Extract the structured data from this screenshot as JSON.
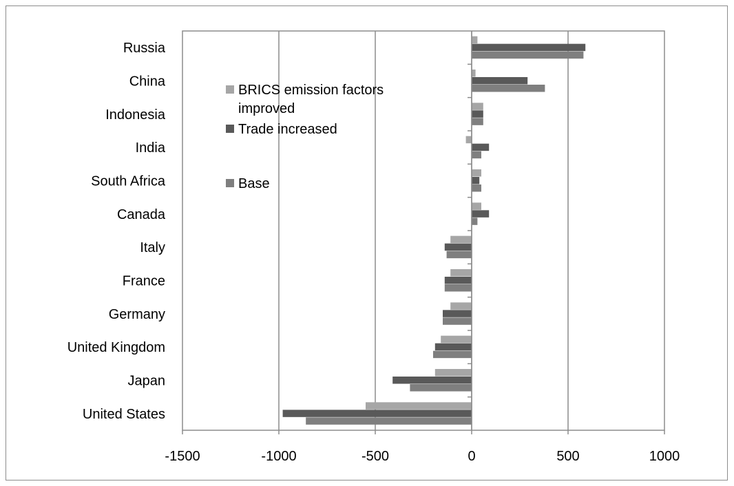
{
  "chart_data": {
    "type": "bar",
    "orientation": "horizontal",
    "categories": [
      "Russia",
      "China",
      "Indonesia",
      "India",
      "South Africa",
      "Canada",
      "Italy",
      "France",
      "Germany",
      "United Kingdom",
      "Japan",
      "United States"
    ],
    "series": [
      {
        "name": "BRICS emission factors improved",
        "color": "#a6a6a6",
        "values": [
          30,
          20,
          60,
          -30,
          50,
          50,
          -110,
          -110,
          -110,
          -160,
          -190,
          -550
        ]
      },
      {
        "name": "Trade increased",
        "color": "#595959",
        "values": [
          590,
          290,
          60,
          90,
          40,
          90,
          -140,
          -140,
          -150,
          -190,
          -410,
          -980
        ]
      },
      {
        "name": "Base",
        "color": "#7f7f7f",
        "values": [
          580,
          380,
          60,
          50,
          50,
          30,
          -130,
          -140,
          -150,
          -200,
          -320,
          -860
        ]
      }
    ],
    "xlim": [
      -1500,
      1000
    ],
    "x_ticks": [
      -1500,
      -1000,
      -500,
      0,
      500,
      1000
    ],
    "x_tick_labels": [
      "-1500",
      "-1000",
      "-500",
      "0",
      "500",
      "1000"
    ],
    "grid": "vertical",
    "legend_placement": "upper-left inside plot",
    "legend_order": [
      "BRICS emission factors improved",
      "Trade increased",
      "Base"
    ],
    "legend_lines": [
      [
        "BRICS emission factors",
        "improved"
      ],
      [
        "Trade increased"
      ],
      [
        "Base"
      ]
    ],
    "title": "",
    "xlabel": "",
    "ylabel": ""
  }
}
